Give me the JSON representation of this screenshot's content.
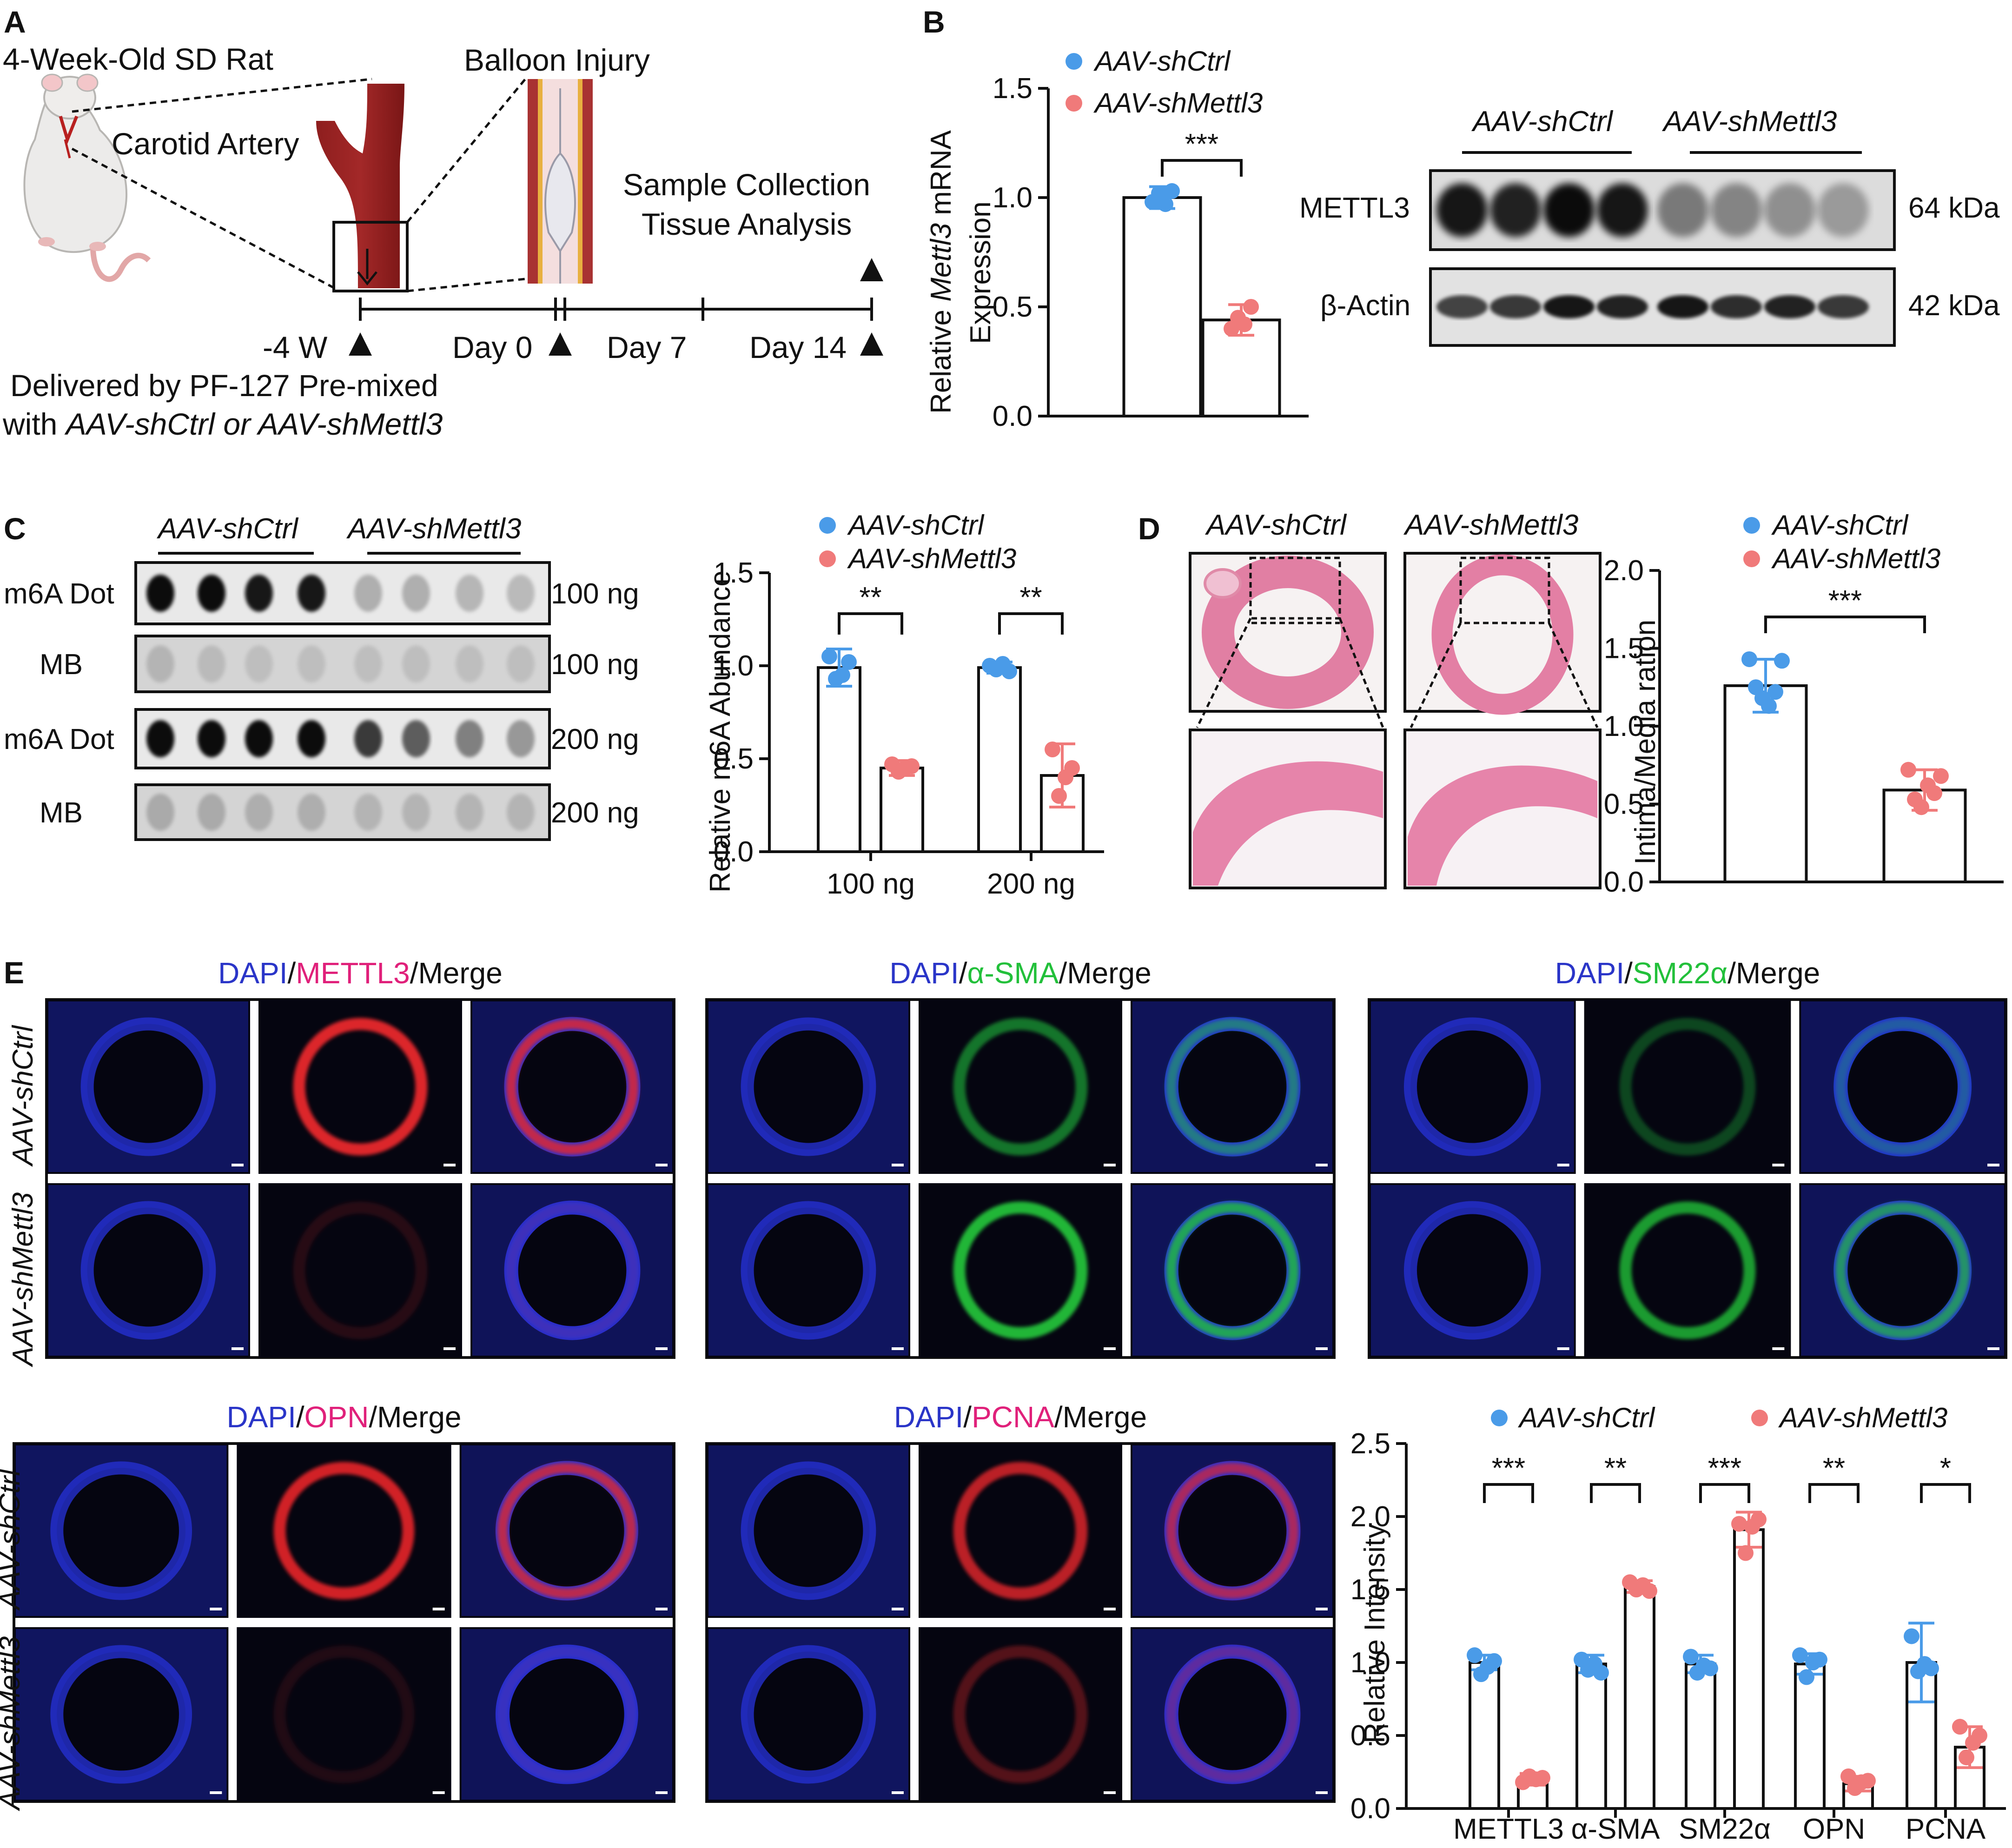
{
  "panels": {
    "A": {
      "letter": "A",
      "rat_label": "4-Week-Old SD Rat",
      "artery_label": "Carotid Artery",
      "injury_label": "Balloon Injury",
      "sample_line1": "Sample Collection",
      "sample_line2": "Tissue Analysis",
      "timeline": [
        "-4 W",
        "Day 0",
        "Day 7",
        "Day 14"
      ],
      "delivery_line1": "Delivered by PF-127 Pre-mixed",
      "delivery_line2": "with AAV-shCtrl or AAV-shMettl3"
    },
    "B": {
      "letter": "B",
      "western": {
        "groups": [
          "AAV-shCtrl",
          "AAV-shMettl3"
        ],
        "rows": [
          {
            "name": "METTL3",
            "size": "64 kDa"
          },
          {
            "name": "β-Actin",
            "size": "42 kDa"
          }
        ]
      }
    },
    "C": {
      "letter": "C",
      "dot_blot": {
        "groups": [
          "AAV-shCtrl",
          "AAV-shMettl3"
        ],
        "rows": [
          {
            "name": "m6A Dot",
            "amount": "100 ng"
          },
          {
            "name": "MB",
            "amount": "100 ng"
          },
          {
            "name": "m6A Dot",
            "amount": "200 ng"
          },
          {
            "name": "MB",
            "amount": "200 ng"
          }
        ]
      }
    },
    "D": {
      "letter": "D",
      "image_titles": [
        "AAV-shCtrl",
        "AAV-shMettl3"
      ]
    },
    "E": {
      "letter": "E",
      "row_labels": [
        "AAV-shCtrl",
        "AAV-shMettl3"
      ],
      "stains": [
        {
          "dapi": "DAPI",
          "marker": "METTL3",
          "merge": "/Merge",
          "marker_color": "#e0207a"
        },
        {
          "dapi": "DAPI",
          "marker": "α-SMA",
          "merge": "/Merge",
          "marker_color": "#22c03a"
        },
        {
          "dapi": "DAPI",
          "marker": "SM22α",
          "merge": "/Merge",
          "marker_color": "#22c03a"
        },
        {
          "dapi": "DAPI",
          "marker": "OPN",
          "merge": "/Merge",
          "marker_color": "#e0207a"
        },
        {
          "dapi": "DAPI",
          "marker": "PCNA",
          "merge": "/Merge",
          "marker_color": "#e0207a"
        }
      ]
    }
  },
  "colors": {
    "ctrl": "#4a9be8",
    "mettl3": "#f07a7a",
    "dapi": "#2a35c8",
    "red": "#e8262a",
    "green": "#22c03a"
  },
  "chart_data": [
    {
      "id": "B",
      "type": "bar",
      "categories": [
        "AAV-shCtrl",
        "AAV-shMettl3"
      ],
      "values": [
        1.0,
        0.44
      ],
      "errors": [
        0.05,
        0.07
      ],
      "points": [
        [
          0.98,
          1.02,
          0.97,
          1.03
        ],
        [
          0.4,
          0.45,
          0.42,
          0.5
        ]
      ],
      "legend": [
        "AAV-shCtrl",
        "AAV-shMettl3"
      ],
      "ylabel_parts": [
        "Relative ",
        "Mettl3",
        " mRNA"
      ],
      "ylabel2": "Expression",
      "yticks": [
        "0.0",
        "0.5",
        "1.0",
        "1.5"
      ],
      "ylim": [
        0,
        1.5
      ],
      "significance": [
        "***"
      ]
    },
    {
      "id": "C",
      "type": "bar",
      "categories": [
        "100 ng",
        "200 ng"
      ],
      "series": [
        {
          "name": "AAV-shCtrl",
          "values": [
            0.99,
            0.99
          ],
          "errors": [
            0.1,
            0.03
          ],
          "points": [
            [
              1.05,
              0.93,
              0.95,
              1.02
            ],
            [
              1.0,
              0.98,
              1.01,
              0.97
            ]
          ]
        },
        {
          "name": "AAV-shMettl3",
          "values": [
            0.45,
            0.41
          ],
          "errors": [
            0.04,
            0.17
          ],
          "points": [
            [
              0.47,
              0.43,
              0.45,
              0.46
            ],
            [
              0.55,
              0.3,
              0.4,
              0.45
            ]
          ]
        }
      ],
      "ylabel": "Relative m6A Abundance",
      "yticks": [
        "0.0",
        "0.5",
        "1.0",
        "1.5"
      ],
      "ylim": [
        0,
        1.5
      ],
      "significance": [
        "**",
        "**"
      ]
    },
    {
      "id": "D",
      "type": "bar",
      "categories": [
        "AAV-shCtrl",
        "AAV-shMettl3"
      ],
      "values": [
        1.26,
        0.59
      ],
      "errors": [
        0.17,
        0.13
      ],
      "points": [
        [
          1.43,
          1.25,
          1.18,
          1.13,
          1.22,
          1.42
        ],
        [
          0.72,
          0.53,
          0.48,
          0.62,
          0.57,
          0.68
        ]
      ],
      "legend": [
        "AAV-shCtrl",
        "AAV-shMettl3"
      ],
      "ylabel": "Intima/Media ration",
      "yticks": [
        "0.0",
        "0.5",
        "1.0",
        "1.5",
        "2.0"
      ],
      "ylim": [
        0,
        2.0
      ],
      "significance": [
        "***"
      ]
    },
    {
      "id": "E",
      "type": "bar",
      "categories": [
        "METTL3",
        "α-SMA",
        "SM22α",
        "OPN",
        "PCNA"
      ],
      "series": [
        {
          "name": "AAV-shCtrl",
          "values": [
            1.0,
            0.99,
            0.99,
            0.99,
            1.0
          ],
          "errors": [
            0.05,
            0.06,
            0.06,
            0.07,
            0.27
          ],
          "points": [
            [
              1.05,
              0.92,
              0.97,
              1.01
            ],
            [
              1.02,
              0.95,
              0.99,
              0.93
            ],
            [
              1.04,
              0.93,
              0.98,
              0.96
            ],
            [
              1.05,
              0.9,
              1.0,
              1.02
            ],
            [
              1.18,
              0.94,
              0.99,
              0.96
            ]
          ]
        },
        {
          "name": "AAV-shMettl3",
          "values": [
            0.2,
            1.52,
            1.91,
            0.17,
            0.42
          ],
          "errors": [
            0.04,
            0.04,
            0.12,
            0.05,
            0.14
          ],
          "points": [
            [
              0.18,
              0.22,
              0.2,
              0.21
            ],
            [
              1.55,
              1.5,
              1.53,
              1.49
            ],
            [
              1.95,
              1.75,
              1.93,
              1.98
            ],
            [
              0.22,
              0.14,
              0.18,
              0.19
            ],
            [
              0.56,
              0.35,
              0.45,
              0.5
            ]
          ]
        }
      ],
      "legend": [
        "AAV-shCtrl",
        "AAV-shMettl3"
      ],
      "ylabel": "Relative Intensity",
      "yticks": [
        "0.0",
        "0.5",
        "1.0",
        "1.5",
        "2.0",
        "2.5"
      ],
      "ylim": [
        0,
        2.5
      ],
      "significance": [
        "***",
        "**",
        "***",
        "**",
        "*"
      ]
    }
  ]
}
